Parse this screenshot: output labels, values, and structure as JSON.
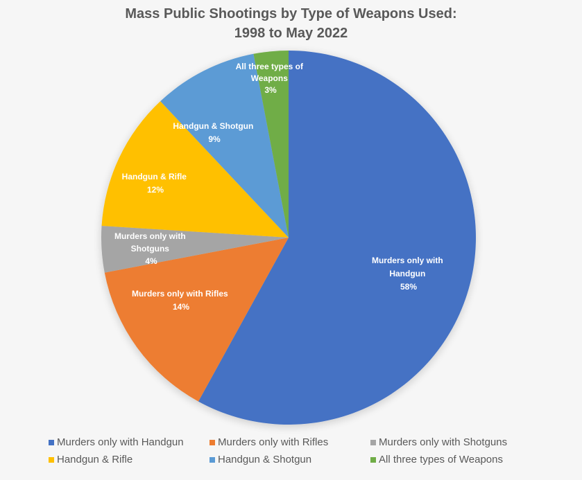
{
  "chart_data": {
    "type": "pie",
    "title": "Mass Public Shootings by Type of Weapons Used: 1998 to May 2022",
    "title_lines": [
      "Mass Public Shootings by Type of Weapons Used:",
      "1998 to May 2022"
    ],
    "start_angle_deg": 0,
    "direction": "clockwise",
    "legend_position": "bottom",
    "slices": [
      {
        "name": "Murders only with Handgun",
        "label_lines": [
          "Murders only with",
          "Handgun",
          "58%"
        ],
        "value": 58,
        "color": "#4472c4"
      },
      {
        "name": "Murders only with Rifles",
        "label_lines": [
          "Murders only with Rifles",
          "14%"
        ],
        "value": 14,
        "color": "#ed7d31"
      },
      {
        "name": "Murders only with Shotguns",
        "label_lines": [
          "Murders only with",
          "Shotguns",
          "4%"
        ],
        "value": 4,
        "color": "#a5a5a5"
      },
      {
        "name": "Handgun & Rifle",
        "label_lines": [
          "Handgun & Rifle",
          "12%"
        ],
        "value": 12,
        "color": "#ffc000"
      },
      {
        "name": "Handgun & Shotgun",
        "label_lines": [
          "Handgun & Shotgun",
          "9%"
        ],
        "value": 9,
        "color": "#5b9bd5"
      },
      {
        "name": "All three types of Weapons",
        "label_lines": [
          "All three types of",
          "Weapons",
          "3%"
        ],
        "value": 3,
        "color": "#70ad47"
      }
    ]
  },
  "title": {
    "line1": "Mass Public Shootings by Type of Weapons Used:",
    "line2": "1998 to May 2022"
  },
  "legend": [
    {
      "label": "Murders only with Handgun",
      "color": "#4472c4"
    },
    {
      "label": "Murders only with Rifles",
      "color": "#ed7d31"
    },
    {
      "label": "Murders only with Shotguns",
      "color": "#a5a5a5"
    },
    {
      "label": "Handgun & Rifle",
      "color": "#ffc000"
    },
    {
      "label": "Handgun & Shotgun",
      "color": "#5b9bd5"
    },
    {
      "label": "All three types of Weapons",
      "color": "#70ad47"
    }
  ]
}
